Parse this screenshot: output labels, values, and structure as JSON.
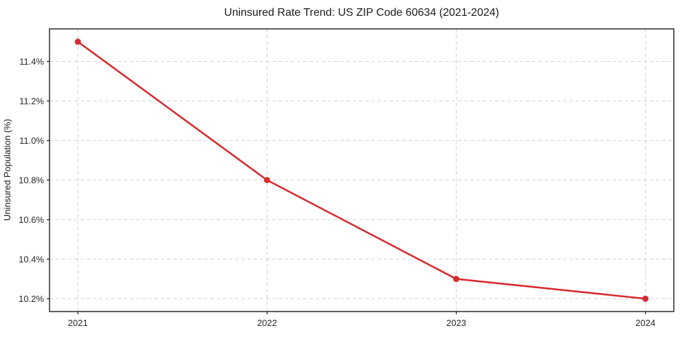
{
  "chart_data": {
    "type": "line",
    "title": "Uninsured Rate Trend: US ZIP Code 60634 (2021-2024)",
    "xlabel": "",
    "ylabel": "Uninsured Population (%)",
    "x": [
      2021,
      2022,
      2023,
      2024
    ],
    "values": [
      11.5,
      10.8,
      10.3,
      10.2
    ],
    "xticks": [
      {
        "value": 2021,
        "label": "2021"
      },
      {
        "value": 2022,
        "label": "2022"
      },
      {
        "value": 2023,
        "label": "2023"
      },
      {
        "value": 2024,
        "label": "2024"
      }
    ],
    "yticks": [
      {
        "value": 10.2,
        "label": "10.2%"
      },
      {
        "value": 10.4,
        "label": "10.4%"
      },
      {
        "value": 10.6,
        "label": "10.6%"
      },
      {
        "value": 10.8,
        "label": "10.8%"
      },
      {
        "value": 11.0,
        "label": "11.0%"
      },
      {
        "value": 11.2,
        "label": "11.2%"
      },
      {
        "value": 11.4,
        "label": "11.4%"
      }
    ],
    "xlim": [
      2020.85,
      2024.15
    ],
    "ylim": [
      10.135,
      11.565
    ],
    "grid": true,
    "legend": "none",
    "line_color": "#d62b2e",
    "marker": "circle",
    "marker_color": "#d62b2e",
    "grid_color": "#cfcfcf",
    "background_color": "#ffffff"
  }
}
